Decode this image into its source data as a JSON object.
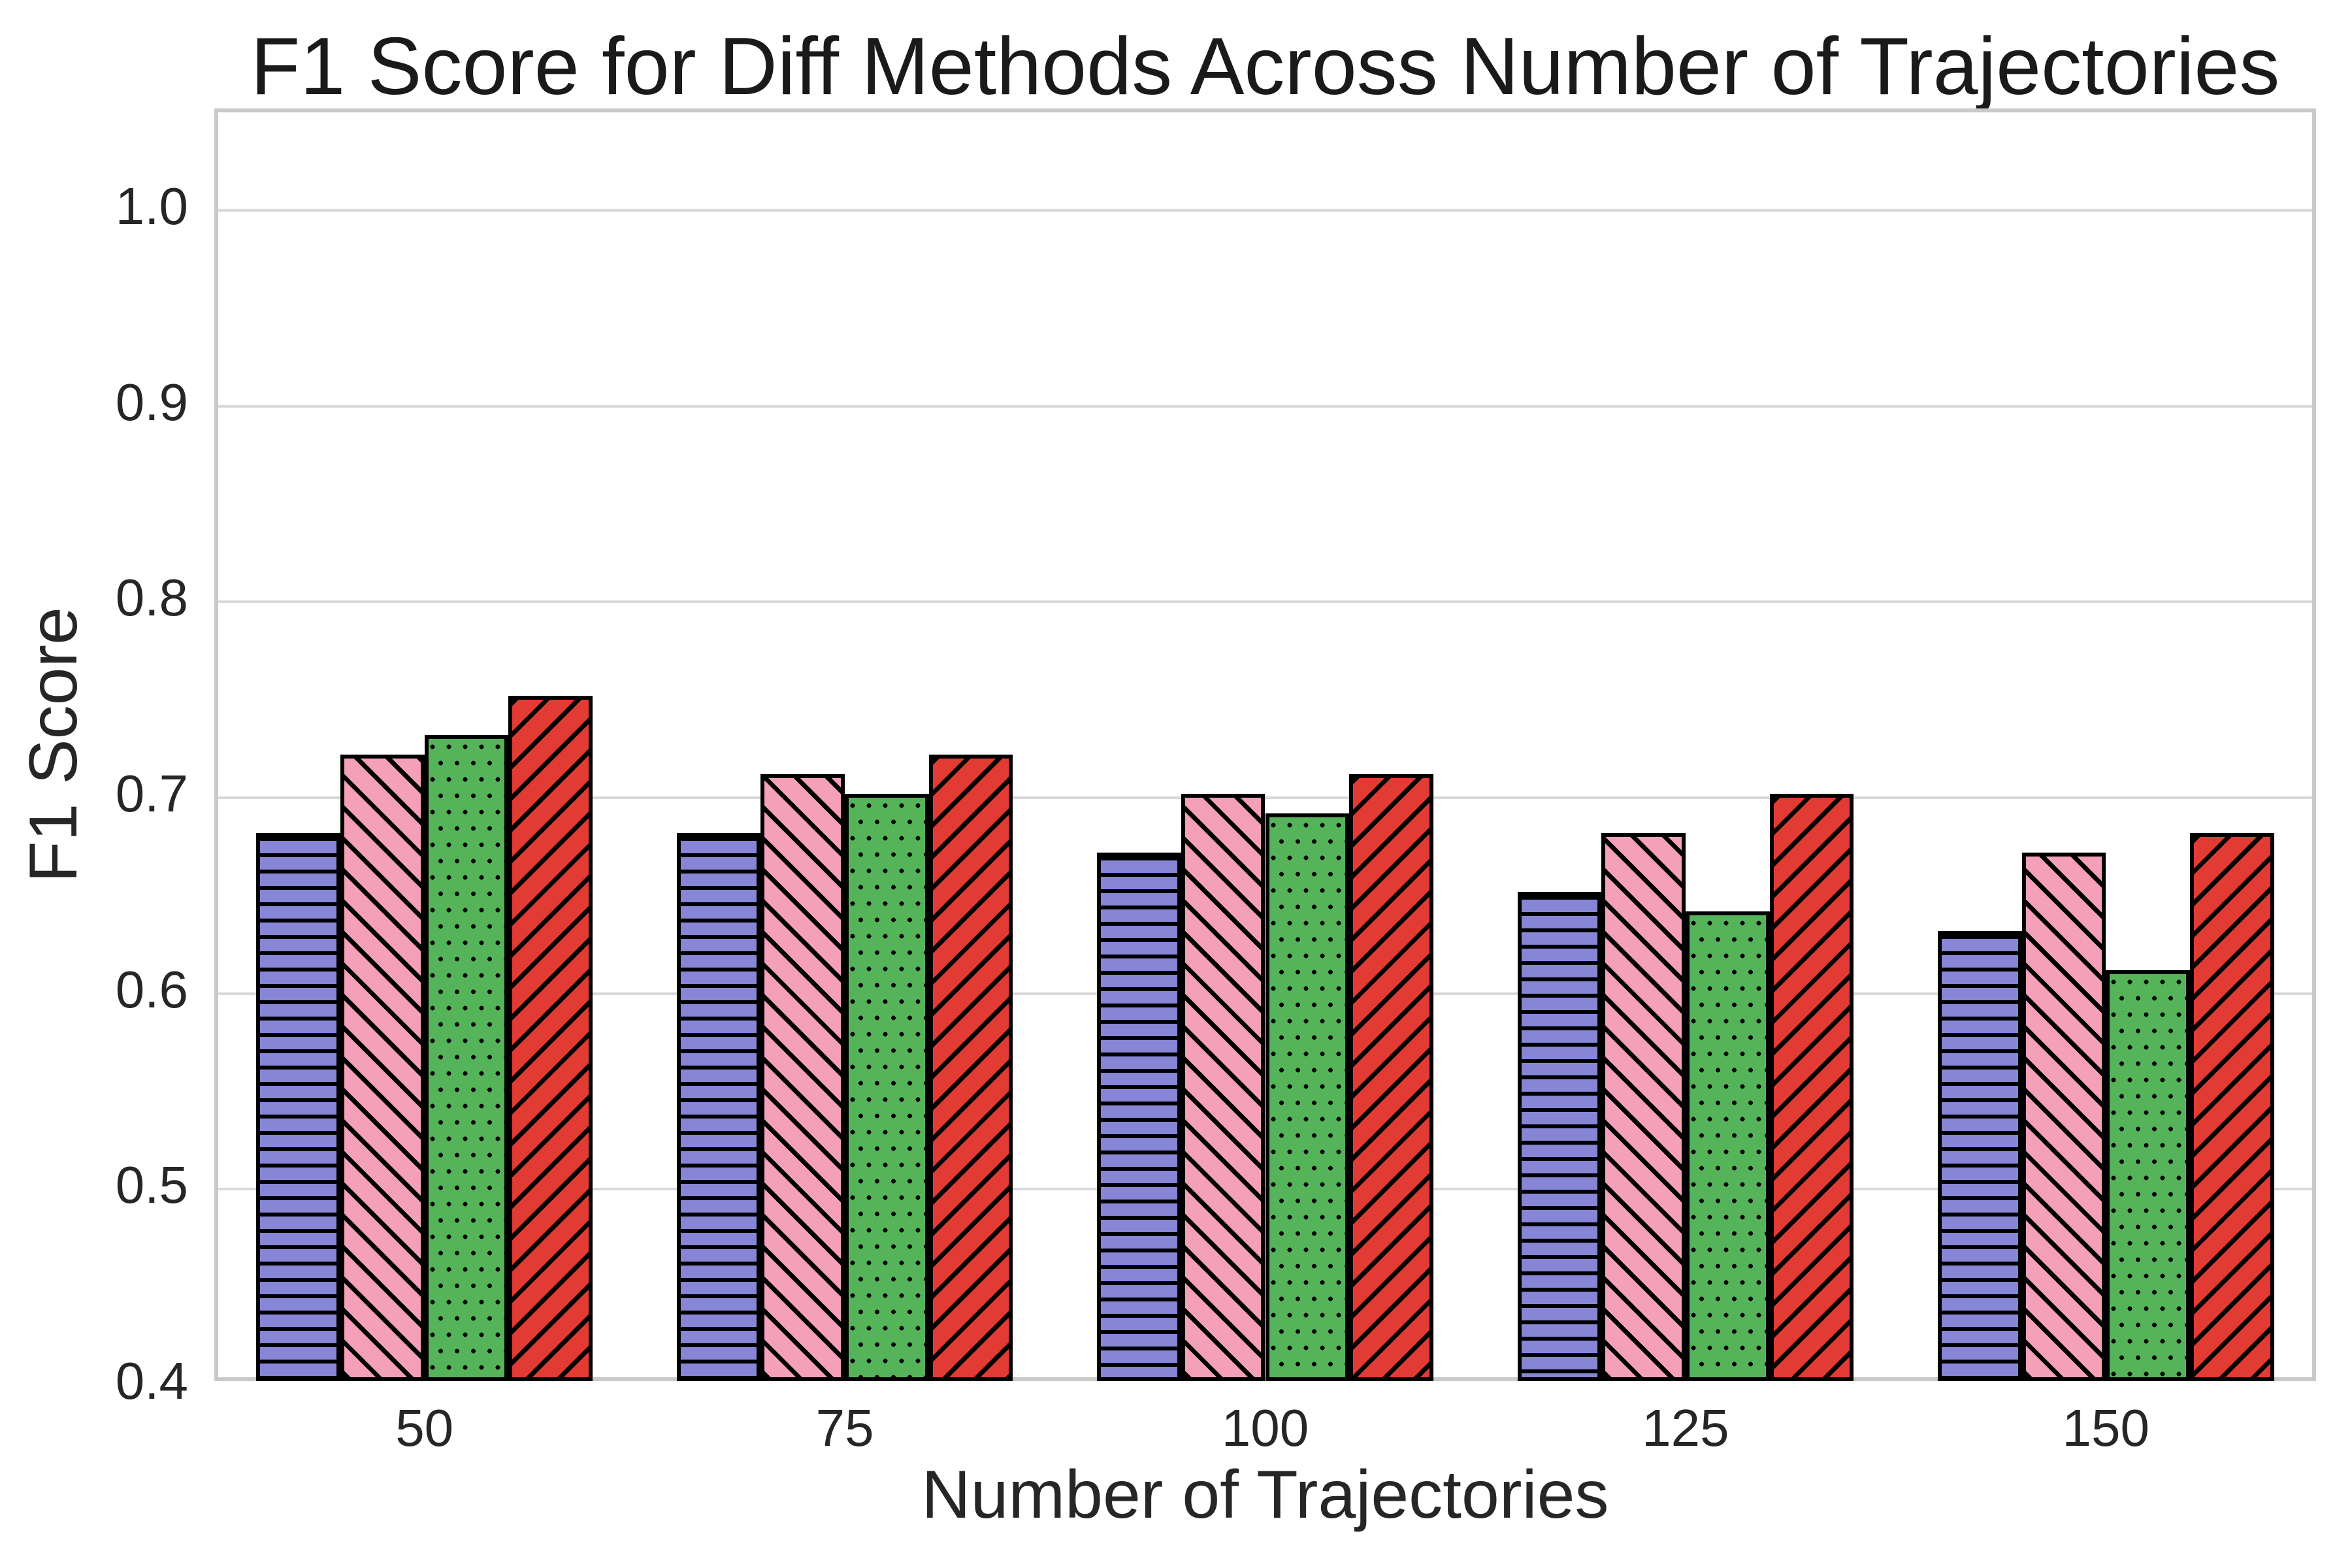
{
  "chart_data": {
    "type": "bar",
    "title": "F1 Score for Diff Methods Across Number of Trajectories",
    "xlabel": "Number of Trajectories",
    "ylabel": "F1 Score",
    "categories": [
      "50",
      "75",
      "100",
      "125",
      "150"
    ],
    "ylim": [
      0.4,
      1.05
    ],
    "yticks": [
      0.4,
      0.5,
      0.6,
      0.7,
      0.8,
      0.9,
      1.0
    ],
    "grid": "horizontal",
    "legend_position": "none",
    "series": [
      {
        "name": "blue-horizontal-hatch-method",
        "color": "#8785d6",
        "hatch": "-",
        "values": [
          0.68,
          0.68,
          0.67,
          0.65,
          0.63
        ]
      },
      {
        "name": "pink-backslash-hatch-method",
        "color": "#f4a0b8",
        "hatch": "\\",
        "values": [
          0.72,
          0.71,
          0.7,
          0.68,
          0.67
        ]
      },
      {
        "name": "green-dot-hatch-method",
        "color": "#55b45a",
        "hatch": ".",
        "values": [
          0.73,
          0.7,
          0.69,
          0.64,
          0.61
        ]
      },
      {
        "name": "red-slash-hatch-method",
        "color": "#e23b33",
        "hatch": "/",
        "values": [
          0.75,
          0.72,
          0.71,
          0.7,
          0.68
        ]
      }
    ]
  }
}
